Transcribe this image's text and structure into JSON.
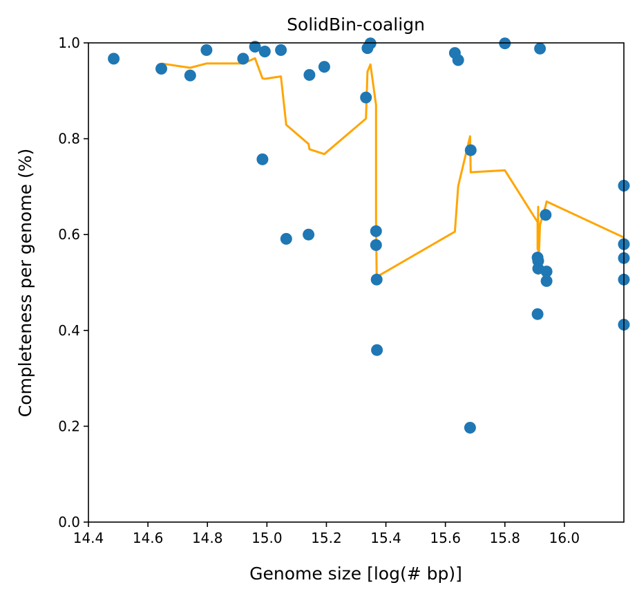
{
  "chart_data": {
    "type": "scatter",
    "title": "SolidBin-coalign",
    "xlabel": "Genome size [log(# bp)]",
    "ylabel": "Completeness per genome (%)",
    "xlim": [
      14.4,
      16.2
    ],
    "ylim": [
      0.0,
      1.0
    ],
    "xticks": [
      14.4,
      14.6,
      14.8,
      15.0,
      15.2,
      15.4,
      15.6,
      15.8,
      16.0
    ],
    "xtick_labels": [
      "14.4",
      "14.6",
      "14.8",
      "15.0",
      "15.2",
      "15.4",
      "15.6",
      "15.8",
      "16.0"
    ],
    "yticks": [
      0.0,
      0.2,
      0.4,
      0.6,
      0.8,
      1.0
    ],
    "ytick_labels": [
      "0.0",
      "0.2",
      "0.4",
      "0.6",
      "0.8",
      "1.0"
    ],
    "grid": false,
    "series": [
      {
        "type": "scatter",
        "color": "#1f77b4",
        "points": [
          [
            14.485,
            0.967
          ],
          [
            14.645,
            0.946
          ],
          [
            14.742,
            0.932
          ],
          [
            14.797,
            0.985
          ],
          [
            14.92,
            0.967
          ],
          [
            14.96,
            0.992
          ],
          [
            14.985,
            0.757
          ],
          [
            14.993,
            0.982
          ],
          [
            15.047,
            0.985
          ],
          [
            15.065,
            0.591
          ],
          [
            15.14,
            0.6
          ],
          [
            15.143,
            0.933
          ],
          [
            15.193,
            0.95
          ],
          [
            15.333,
            0.886
          ],
          [
            15.338,
            0.989
          ],
          [
            15.348,
            0.999
          ],
          [
            15.367,
            0.607
          ],
          [
            15.367,
            0.578
          ],
          [
            15.369,
            0.506
          ],
          [
            15.37,
            0.359
          ],
          [
            15.632,
            0.979
          ],
          [
            15.643,
            0.964
          ],
          [
            15.683,
            0.197
          ],
          [
            15.685,
            0.776
          ],
          [
            15.8,
            0.999
          ],
          [
            15.91,
            0.434
          ],
          [
            15.91,
            0.552
          ],
          [
            15.912,
            0.545
          ],
          [
            15.912,
            0.529
          ],
          [
            15.918,
            0.988
          ],
          [
            15.937,
            0.641
          ],
          [
            15.94,
            0.523
          ],
          [
            15.94,
            0.503
          ],
          [
            16.2,
            0.702
          ],
          [
            16.2,
            0.58
          ],
          [
            16.2,
            0.551
          ],
          [
            16.2,
            0.506
          ],
          [
            16.2,
            0.412
          ]
        ]
      },
      {
        "type": "line",
        "color": "#ffa500",
        "points": [
          [
            14.645,
            0.957
          ],
          [
            14.742,
            0.948
          ],
          [
            14.797,
            0.957
          ],
          [
            14.92,
            0.957
          ],
          [
            14.96,
            0.968
          ],
          [
            14.985,
            0.926
          ],
          [
            14.993,
            0.925
          ],
          [
            15.047,
            0.93
          ],
          [
            15.065,
            0.829
          ],
          [
            15.14,
            0.789
          ],
          [
            15.143,
            0.778
          ],
          [
            15.193,
            0.768
          ],
          [
            15.333,
            0.842
          ],
          [
            15.338,
            0.94
          ],
          [
            15.348,
            0.955
          ],
          [
            15.367,
            0.87
          ],
          [
            15.367,
            0.63
          ],
          [
            15.369,
            0.512
          ],
          [
            15.37,
            0.512
          ],
          [
            15.632,
            0.606
          ],
          [
            15.643,
            0.701
          ],
          [
            15.683,
            0.805
          ],
          [
            15.685,
            0.73
          ],
          [
            15.8,
            0.734
          ],
          [
            15.91,
            0.626
          ],
          [
            15.91,
            0.57
          ],
          [
            15.912,
            0.658
          ],
          [
            15.912,
            0.518
          ],
          [
            15.918,
            0.62
          ],
          [
            15.937,
            0.66
          ],
          [
            15.94,
            0.669
          ],
          [
            16.2,
            0.594
          ]
        ]
      }
    ]
  }
}
